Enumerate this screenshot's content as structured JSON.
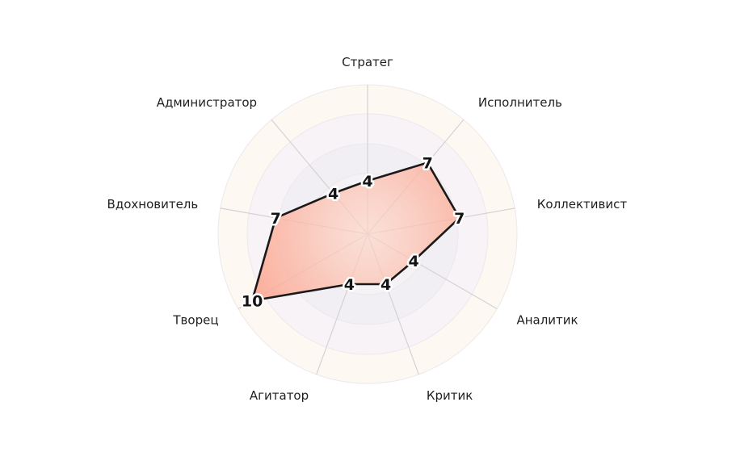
{
  "chart_data": {
    "type": "radar",
    "title": "",
    "rmax": 10,
    "grid": true,
    "legend": "none",
    "categories": [
      "Стратег",
      "Исполнитель",
      "Коллективист",
      "Аналитик",
      "Критик",
      "Агитатор",
      "Творец",
      "Вдохновитель",
      "Администратор"
    ],
    "series": [
      {
        "values": [
          4,
          7,
          7,
          4,
          4,
          4,
          10,
          7,
          4
        ]
      }
    ],
    "value_labels": [
      "4",
      "7",
      "7",
      "4",
      "4",
      "4",
      "10",
      "7",
      "4"
    ],
    "colors": {
      "fill": "#fba58f",
      "stroke": "#1a1a1a",
      "band_outer": "#fdf8f1",
      "band_mid": "#f7f3f6",
      "band_inner": "#f1eef4",
      "center": "#f5f2f6",
      "spoke": "#d5d2d4"
    }
  }
}
